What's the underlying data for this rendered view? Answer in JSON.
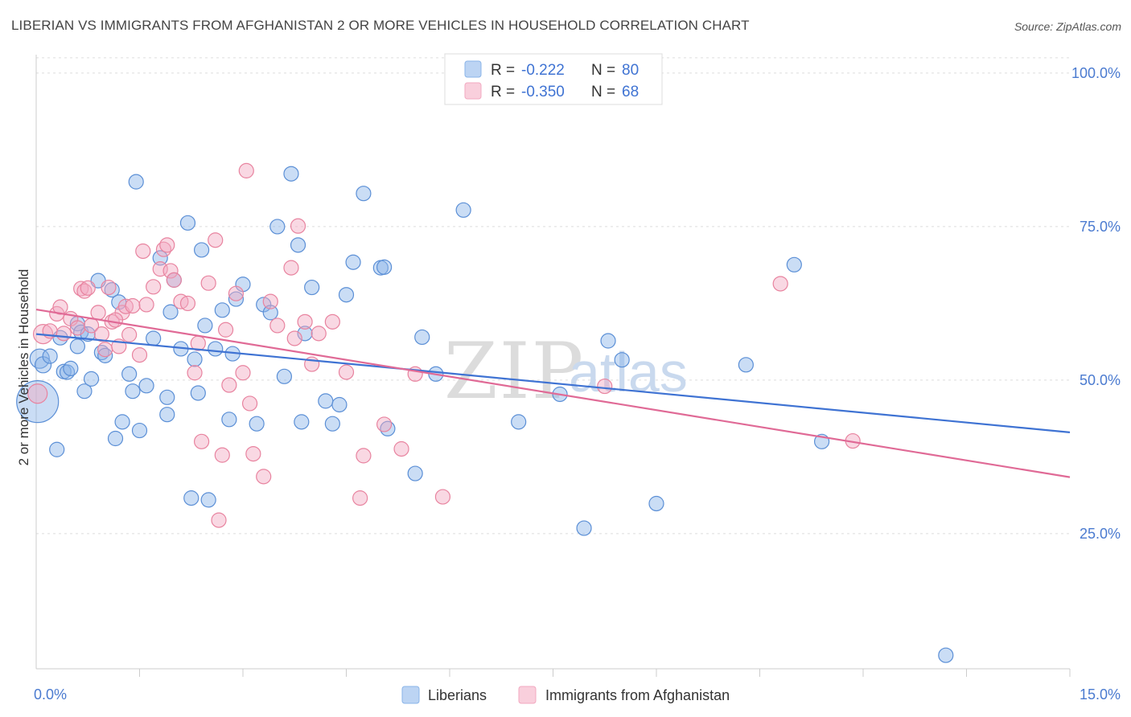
{
  "title": "LIBERIAN VS IMMIGRANTS FROM AFGHANISTAN 2 OR MORE VEHICLES IN HOUSEHOLD CORRELATION CHART",
  "source": "Source: ZipAtlas.com",
  "watermark": {
    "zip": "ZIP",
    "atlas": "atlas"
  },
  "legend_top": [
    {
      "r_label": "R =",
      "r_value": "-0.222",
      "n_label": "N =",
      "n_value": "80",
      "color": "#8ab4e8"
    },
    {
      "r_label": "R =",
      "r_value": "-0.350",
      "n_label": "N =",
      "n_value": "68",
      "color": "#f2a8c0"
    }
  ],
  "chart_data": {
    "type": "scatter",
    "title": "LIBERIAN VS IMMIGRANTS FROM AFGHANISTAN 2 OR MORE VEHICLES IN HOUSEHOLD CORRELATION CHART",
    "xlabel": "",
    "ylabel": "2 or more Vehicles in Household",
    "xlim": [
      0,
      15
    ],
    "ylim": [
      3,
      103
    ],
    "x_tick_labels": [
      "0.0%",
      "15.0%"
    ],
    "y_ticks": [
      25,
      50,
      75,
      100
    ],
    "y_tick_labels": [
      "25.0%",
      "50.0%",
      "75.0%",
      "100.0%"
    ],
    "grid": true,
    "legend_position": "bottom",
    "series": [
      {
        "name": "Liberians",
        "color": "#8ab4e8",
        "stroke": "#5b8fd6",
        "trend": {
          "x": [
            0,
            15
          ],
          "y": [
            57.5,
            41.5
          ],
          "color": "#3f73d3"
        },
        "points": [
          [
            0.02,
            46.5,
            26
          ],
          [
            0.05,
            53.5,
            12
          ],
          [
            0.1,
            52.5,
            10
          ],
          [
            0.2,
            53.9,
            9
          ],
          [
            0.3,
            38.7,
            9
          ],
          [
            0.35,
            56.9,
            9
          ],
          [
            0.4,
            51.4,
            9
          ],
          [
            0.45,
            51.3,
            9
          ],
          [
            0.5,
            51.9,
            9
          ],
          [
            0.6,
            59.2,
            9
          ],
          [
            0.6,
            55.5,
            9
          ],
          [
            0.65,
            57.8,
            9
          ],
          [
            0.7,
            48.2,
            9
          ],
          [
            0.75,
            57.5,
            9
          ],
          [
            0.8,
            50.2,
            9
          ],
          [
            0.9,
            66.2,
            9
          ],
          [
            0.95,
            54.5,
            9
          ],
          [
            1.0,
            54.0,
            9
          ],
          [
            1.1,
            64.7,
            9
          ],
          [
            1.15,
            40.5,
            9
          ],
          [
            1.2,
            62.7,
            9
          ],
          [
            1.25,
            43.2,
            9
          ],
          [
            1.35,
            51.0,
            9
          ],
          [
            1.4,
            48.2,
            9
          ],
          [
            1.45,
            82.3,
            9
          ],
          [
            1.5,
            41.8,
            9
          ],
          [
            1.6,
            49.1,
            9
          ],
          [
            1.7,
            56.8,
            9
          ],
          [
            1.8,
            69.9,
            9
          ],
          [
            1.9,
            44.4,
            9
          ],
          [
            1.9,
            47.2,
            9
          ],
          [
            1.95,
            61.1,
            9
          ],
          [
            2.0,
            66.3,
            9
          ],
          [
            2.1,
            55.1,
            9
          ],
          [
            2.2,
            75.6,
            9
          ],
          [
            2.25,
            30.8,
            9
          ],
          [
            2.3,
            53.4,
            9
          ],
          [
            2.35,
            47.9,
            9
          ],
          [
            2.4,
            71.2,
            9
          ],
          [
            2.45,
            58.9,
            9
          ],
          [
            2.5,
            30.5,
            9
          ],
          [
            2.6,
            55.1,
            9
          ],
          [
            2.7,
            61.4,
            9
          ],
          [
            2.8,
            43.6,
            9
          ],
          [
            2.85,
            54.3,
            9
          ],
          [
            2.9,
            63.2,
            9
          ],
          [
            3.0,
            65.6,
            9
          ],
          [
            3.2,
            42.9,
            9
          ],
          [
            3.3,
            62.3,
            9
          ],
          [
            3.5,
            75.0,
            9
          ],
          [
            3.6,
            50.6,
            9
          ],
          [
            3.7,
            83.6,
            9
          ],
          [
            3.8,
            72.0,
            9
          ],
          [
            3.85,
            43.2,
            9
          ],
          [
            3.9,
            57.6,
            9
          ],
          [
            4.0,
            65.1,
            9
          ],
          [
            4.2,
            46.6,
            9
          ],
          [
            4.3,
            42.9,
            9
          ],
          [
            4.4,
            46.0,
            9
          ],
          [
            4.5,
            63.9,
            9
          ],
          [
            4.6,
            69.2,
            9
          ],
          [
            4.75,
            80.4,
            9
          ],
          [
            5.0,
            68.3,
            9
          ],
          [
            5.05,
            68.4,
            9
          ],
          [
            5.1,
            42.1,
            9
          ],
          [
            5.5,
            34.8,
            9
          ],
          [
            5.6,
            57.0,
            9
          ],
          [
            6.2,
            77.7,
            9
          ],
          [
            7.0,
            43.2,
            9
          ],
          [
            7.6,
            47.7,
            9
          ],
          [
            7.95,
            25.9,
            9
          ],
          [
            8.3,
            56.4,
            9
          ],
          [
            8.5,
            53.3,
            9
          ],
          [
            9.0,
            29.9,
            9
          ],
          [
            10.3,
            52.5,
            9
          ],
          [
            11.0,
            68.8,
            9
          ],
          [
            11.4,
            40.0,
            9
          ],
          [
            13.2,
            5.2,
            9
          ],
          [
            5.8,
            51.0,
            9
          ],
          [
            3.4,
            61.0,
            9
          ]
        ]
      },
      {
        "name": "Immigrants from Afghanistan",
        "color": "#f2a8c0",
        "stroke": "#e8839f",
        "trend": {
          "x": [
            0,
            15
          ],
          "y": [
            61.5,
            34.2
          ],
          "color": "#e06a96"
        },
        "points": [
          [
            0.02,
            47.8,
            12
          ],
          [
            0.1,
            57.5,
            12
          ],
          [
            0.2,
            58.0,
            9
          ],
          [
            0.3,
            60.8,
            9
          ],
          [
            0.35,
            61.9,
            9
          ],
          [
            0.4,
            57.6,
            9
          ],
          [
            0.5,
            60.0,
            9
          ],
          [
            0.6,
            58.5,
            9
          ],
          [
            0.65,
            64.9,
            9
          ],
          [
            0.7,
            64.5,
            9
          ],
          [
            0.75,
            65.0,
            9
          ],
          [
            0.8,
            58.9,
            9
          ],
          [
            0.9,
            61.0,
            9
          ],
          [
            0.95,
            57.5,
            9
          ],
          [
            1.0,
            55.0,
            9
          ],
          [
            1.05,
            65.1,
            9
          ],
          [
            1.1,
            59.5,
            9
          ],
          [
            1.2,
            55.5,
            9
          ],
          [
            1.25,
            61.0,
            9
          ],
          [
            1.3,
            62.0,
            9
          ],
          [
            1.35,
            57.4,
            9
          ],
          [
            1.4,
            62.1,
            9
          ],
          [
            1.5,
            54.1,
            9
          ],
          [
            1.55,
            71.0,
            9
          ],
          [
            1.6,
            62.3,
            9
          ],
          [
            1.7,
            65.2,
            9
          ],
          [
            1.8,
            68.1,
            9
          ],
          [
            1.85,
            71.3,
            9
          ],
          [
            1.9,
            72.0,
            9
          ],
          [
            1.95,
            67.8,
            9
          ],
          [
            2.0,
            66.3,
            9
          ],
          [
            2.1,
            62.8,
            9
          ],
          [
            2.3,
            51.2,
            9
          ],
          [
            2.35,
            56.0,
            9
          ],
          [
            2.4,
            40.0,
            9
          ],
          [
            2.5,
            65.8,
            9
          ],
          [
            2.6,
            72.8,
            9
          ],
          [
            2.65,
            27.2,
            9
          ],
          [
            2.7,
            37.8,
            9
          ],
          [
            2.75,
            58.2,
            9
          ],
          [
            2.8,
            49.2,
            9
          ],
          [
            2.9,
            64.1,
            9
          ],
          [
            3.0,
            51.2,
            9
          ],
          [
            3.05,
            84.1,
            9
          ],
          [
            3.1,
            46.2,
            9
          ],
          [
            3.15,
            38.0,
            9
          ],
          [
            3.3,
            34.3,
            9
          ],
          [
            3.4,
            62.8,
            9
          ],
          [
            3.5,
            58.9,
            9
          ],
          [
            3.7,
            68.3,
            9
          ],
          [
            3.75,
            56.8,
            9
          ],
          [
            3.8,
            75.1,
            9
          ],
          [
            3.9,
            59.5,
            9
          ],
          [
            4.0,
            52.6,
            9
          ],
          [
            4.1,
            57.6,
            9
          ],
          [
            4.3,
            59.5,
            9
          ],
          [
            4.5,
            51.3,
            9
          ],
          [
            4.7,
            30.8,
            9
          ],
          [
            4.75,
            37.7,
            9
          ],
          [
            5.05,
            42.8,
            9
          ],
          [
            5.3,
            38.8,
            9
          ],
          [
            5.5,
            51.0,
            9
          ],
          [
            5.9,
            31.0,
            9
          ],
          [
            8.25,
            49.0,
            9
          ],
          [
            10.8,
            65.7,
            9
          ],
          [
            11.85,
            40.1,
            9
          ],
          [
            2.2,
            62.5,
            9
          ],
          [
            1.15,
            59.8,
            9
          ]
        ]
      }
    ]
  }
}
